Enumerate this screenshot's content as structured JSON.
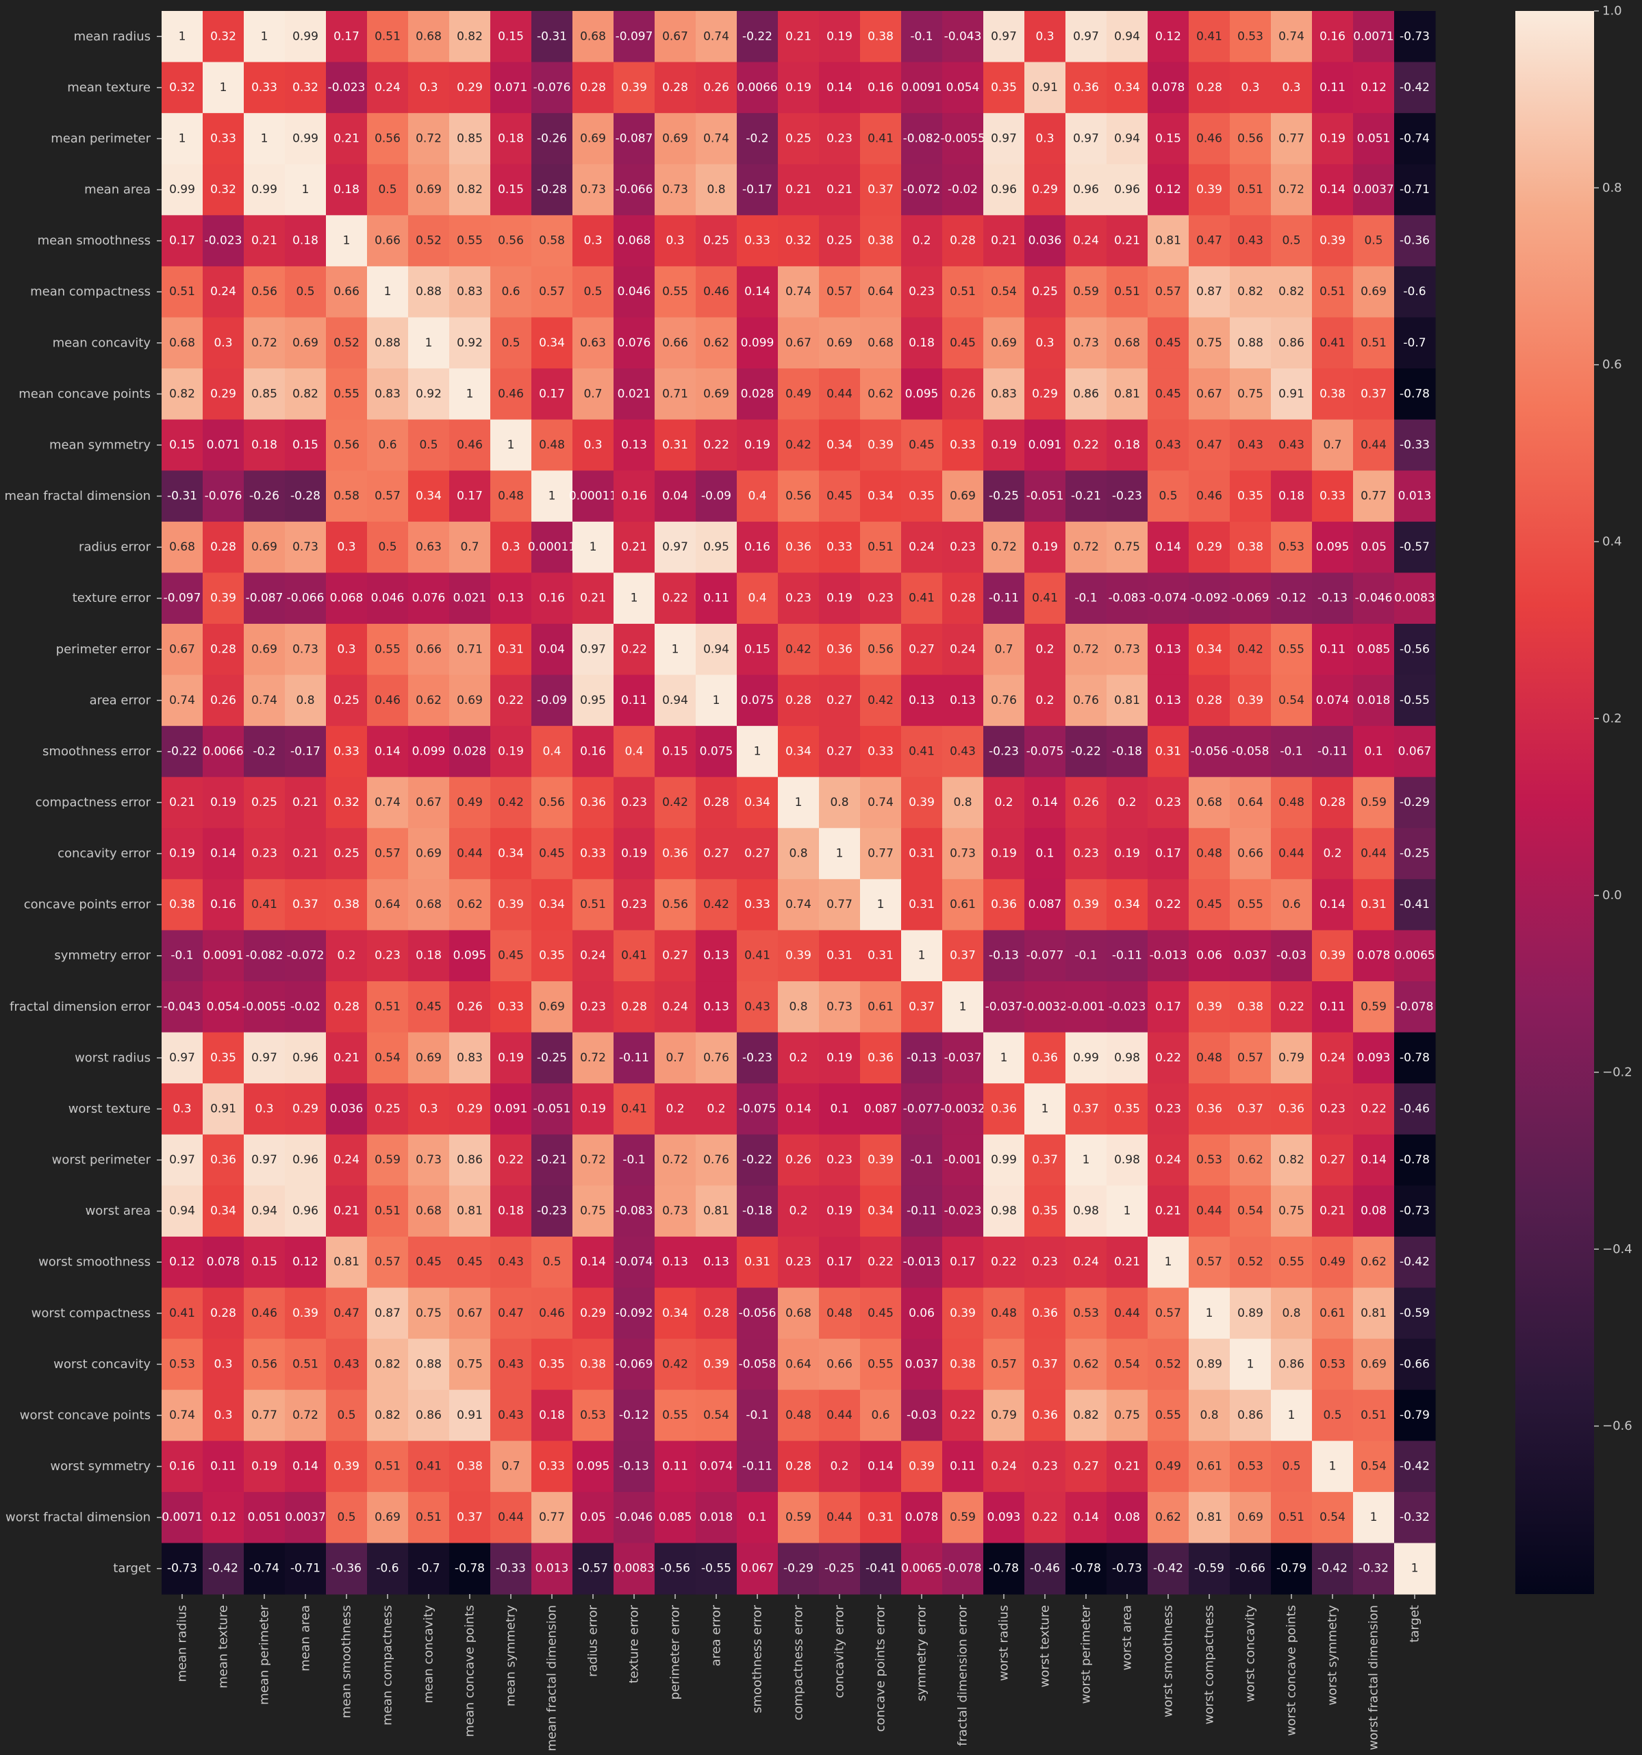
{
  "chart_data": {
    "type": "heatmap",
    "title": "",
    "xlabel": "",
    "ylabel": "",
    "vmin": -0.79,
    "vmax": 1.0,
    "colormap": "rocket",
    "colorbar_ticks": [
      "1.0",
      "0.8",
      "0.6",
      "0.4",
      "0.2",
      "0.0",
      "−0.2",
      "−0.4",
      "−0.6"
    ],
    "colorbar_tick_values": [
      1.0,
      0.8,
      0.6,
      0.4,
      0.2,
      0.0,
      -0.2,
      -0.4,
      -0.6
    ],
    "labels": [
      "mean radius",
      "mean texture",
      "mean perimeter",
      "mean area",
      "mean smoothness",
      "mean compactness",
      "mean concavity",
      "mean concave points",
      "mean symmetry",
      "mean fractal dimension",
      "radius error",
      "texture error",
      "perimeter error",
      "area error",
      "smoothness error",
      "compactness error",
      "concavity error",
      "concave points error",
      "symmetry error",
      "fractal dimension error",
      "worst radius",
      "worst texture",
      "worst perimeter",
      "worst area",
      "worst smoothness",
      "worst compactness",
      "worst concavity",
      "worst concave points",
      "worst symmetry",
      "worst fractal dimension",
      "target"
    ],
    "matrix": [
      [
        "1",
        "0.32",
        "1",
        "0.99",
        "0.17",
        "0.51",
        "0.68",
        "0.82",
        "0.15",
        "-0.31",
        "0.68",
        "-0.097",
        "0.67",
        "0.74",
        "-0.22",
        "0.21",
        "0.19",
        "0.38",
        "-0.1",
        "-0.043",
        "0.97",
        "0.3",
        "0.97",
        "0.94",
        "0.12",
        "0.41",
        "0.53",
        "0.74",
        "0.16",
        "0.0071",
        "-0.73"
      ],
      [
        "0.32",
        "1",
        "0.33",
        "0.32",
        "-0.023",
        "0.24",
        "0.3",
        "0.29",
        "0.071",
        "-0.076",
        "0.28",
        "0.39",
        "0.28",
        "0.26",
        "0.0066",
        "0.19",
        "0.14",
        "0.16",
        "0.0091",
        "0.054",
        "0.35",
        "0.91",
        "0.36",
        "0.34",
        "0.078",
        "0.28",
        "0.3",
        "0.3",
        "0.11",
        "0.12",
        "-0.42"
      ],
      [
        "1",
        "0.33",
        "1",
        "0.99",
        "0.21",
        "0.56",
        "0.72",
        "0.85",
        "0.18",
        "-0.26",
        "0.69",
        "-0.087",
        "0.69",
        "0.74",
        "-0.2",
        "0.25",
        "0.23",
        "0.41",
        "-0.082",
        "-0.0055",
        "0.97",
        "0.3",
        "0.97",
        "0.94",
        "0.15",
        "0.46",
        "0.56",
        "0.77",
        "0.19",
        "0.051",
        "-0.74"
      ],
      [
        "0.99",
        "0.32",
        "0.99",
        "1",
        "0.18",
        "0.5",
        "0.69",
        "0.82",
        "0.15",
        "-0.28",
        "0.73",
        "-0.066",
        "0.73",
        "0.8",
        "-0.17",
        "0.21",
        "0.21",
        "0.37",
        "-0.072",
        "-0.02",
        "0.96",
        "0.29",
        "0.96",
        "0.96",
        "0.12",
        "0.39",
        "0.51",
        "0.72",
        "0.14",
        "0.0037",
        "-0.71"
      ],
      [
        "0.17",
        "-0.023",
        "0.21",
        "0.18",
        "1",
        "0.66",
        "0.52",
        "0.55",
        "0.56",
        "0.58",
        "0.3",
        "0.068",
        "0.3",
        "0.25",
        "0.33",
        "0.32",
        "0.25",
        "0.38",
        "0.2",
        "0.28",
        "0.21",
        "0.036",
        "0.24",
        "0.21",
        "0.81",
        "0.47",
        "0.43",
        "0.5",
        "0.39",
        "0.5",
        "-0.36"
      ],
      [
        "0.51",
        "0.24",
        "0.56",
        "0.5",
        "0.66",
        "1",
        "0.88",
        "0.83",
        "0.6",
        "0.57",
        "0.5",
        "0.046",
        "0.55",
        "0.46",
        "0.14",
        "0.74",
        "0.57",
        "0.64",
        "0.23",
        "0.51",
        "0.54",
        "0.25",
        "0.59",
        "0.51",
        "0.57",
        "0.87",
        "0.82",
        "0.82",
        "0.51",
        "0.69",
        "-0.6"
      ],
      [
        "0.68",
        "0.3",
        "0.72",
        "0.69",
        "0.52",
        "0.88",
        "1",
        "0.92",
        "0.5",
        "0.34",
        "0.63",
        "0.076",
        "0.66",
        "0.62",
        "0.099",
        "0.67",
        "0.69",
        "0.68",
        "0.18",
        "0.45",
        "0.69",
        "0.3",
        "0.73",
        "0.68",
        "0.45",
        "0.75",
        "0.88",
        "0.86",
        "0.41",
        "0.51",
        "-0.7"
      ],
      [
        "0.82",
        "0.29",
        "0.85",
        "0.82",
        "0.55",
        "0.83",
        "0.92",
        "1",
        "0.46",
        "0.17",
        "0.7",
        "0.021",
        "0.71",
        "0.69",
        "0.028",
        "0.49",
        "0.44",
        "0.62",
        "0.095",
        "0.26",
        "0.83",
        "0.29",
        "0.86",
        "0.81",
        "0.45",
        "0.67",
        "0.75",
        "0.91",
        "0.38",
        "0.37",
        "-0.78"
      ],
      [
        "0.15",
        "0.071",
        "0.18",
        "0.15",
        "0.56",
        "0.6",
        "0.5",
        "0.46",
        "1",
        "0.48",
        "0.3",
        "0.13",
        "0.31",
        "0.22",
        "0.19",
        "0.42",
        "0.34",
        "0.39",
        "0.45",
        "0.33",
        "0.19",
        "0.091",
        "0.22",
        "0.18",
        "0.43",
        "0.47",
        "0.43",
        "0.43",
        "0.7",
        "0.44",
        "-0.33"
      ],
      [
        "-0.31",
        "-0.076",
        "-0.26",
        "-0.28",
        "0.58",
        "0.57",
        "0.34",
        "0.17",
        "0.48",
        "1",
        "0.00011",
        "0.16",
        "0.04",
        "-0.09",
        "0.4",
        "0.56",
        "0.45",
        "0.34",
        "0.35",
        "0.69",
        "-0.25",
        "-0.051",
        "-0.21",
        "-0.23",
        "0.5",
        "0.46",
        "0.35",
        "0.18",
        "0.33",
        "0.77",
        "0.013"
      ],
      [
        "0.68",
        "0.28",
        "0.69",
        "0.73",
        "0.3",
        "0.5",
        "0.63",
        "0.7",
        "0.3",
        "0.00011",
        "1",
        "0.21",
        "0.97",
        "0.95",
        "0.16",
        "0.36",
        "0.33",
        "0.51",
        "0.24",
        "0.23",
        "0.72",
        "0.19",
        "0.72",
        "0.75",
        "0.14",
        "0.29",
        "0.38",
        "0.53",
        "0.095",
        "0.05",
        "-0.57"
      ],
      [
        "-0.097",
        "0.39",
        "-0.087",
        "-0.066",
        "0.068",
        "0.046",
        "0.076",
        "0.021",
        "0.13",
        "0.16",
        "0.21",
        "1",
        "0.22",
        "0.11",
        "0.4",
        "0.23",
        "0.19",
        "0.23",
        "0.41",
        "0.28",
        "-0.11",
        "0.41",
        "-0.1",
        "-0.083",
        "-0.074",
        "-0.092",
        "-0.069",
        "-0.12",
        "-0.13",
        "-0.046",
        "0.0083"
      ],
      [
        "0.67",
        "0.28",
        "0.69",
        "0.73",
        "0.3",
        "0.55",
        "0.66",
        "0.71",
        "0.31",
        "0.04",
        "0.97",
        "0.22",
        "1",
        "0.94",
        "0.15",
        "0.42",
        "0.36",
        "0.56",
        "0.27",
        "0.24",
        "0.7",
        "0.2",
        "0.72",
        "0.73",
        "0.13",
        "0.34",
        "0.42",
        "0.55",
        "0.11",
        "0.085",
        "-0.56"
      ],
      [
        "0.74",
        "0.26",
        "0.74",
        "0.8",
        "0.25",
        "0.46",
        "0.62",
        "0.69",
        "0.22",
        "-0.09",
        "0.95",
        "0.11",
        "0.94",
        "1",
        "0.075",
        "0.28",
        "0.27",
        "0.42",
        "0.13",
        "0.13",
        "0.76",
        "0.2",
        "0.76",
        "0.81",
        "0.13",
        "0.28",
        "0.39",
        "0.54",
        "0.074",
        "0.018",
        "-0.55"
      ],
      [
        "-0.22",
        "0.0066",
        "-0.2",
        "-0.17",
        "0.33",
        "0.14",
        "0.099",
        "0.028",
        "0.19",
        "0.4",
        "0.16",
        "0.4",
        "0.15",
        "0.075",
        "1",
        "0.34",
        "0.27",
        "0.33",
        "0.41",
        "0.43",
        "-0.23",
        "-0.075",
        "-0.22",
        "-0.18",
        "0.31",
        "-0.056",
        "-0.058",
        "-0.1",
        "-0.11",
        "0.1",
        "0.067"
      ],
      [
        "0.21",
        "0.19",
        "0.25",
        "0.21",
        "0.32",
        "0.74",
        "0.67",
        "0.49",
        "0.42",
        "0.56",
        "0.36",
        "0.23",
        "0.42",
        "0.28",
        "0.34",
        "1",
        "0.8",
        "0.74",
        "0.39",
        "0.8",
        "0.2",
        "0.14",
        "0.26",
        "0.2",
        "0.23",
        "0.68",
        "0.64",
        "0.48",
        "0.28",
        "0.59",
        "-0.29"
      ],
      [
        "0.19",
        "0.14",
        "0.23",
        "0.21",
        "0.25",
        "0.57",
        "0.69",
        "0.44",
        "0.34",
        "0.45",
        "0.33",
        "0.19",
        "0.36",
        "0.27",
        "0.27",
        "0.8",
        "1",
        "0.77",
        "0.31",
        "0.73",
        "0.19",
        "0.1",
        "0.23",
        "0.19",
        "0.17",
        "0.48",
        "0.66",
        "0.44",
        "0.2",
        "0.44",
        "-0.25"
      ],
      [
        "0.38",
        "0.16",
        "0.41",
        "0.37",
        "0.38",
        "0.64",
        "0.68",
        "0.62",
        "0.39",
        "0.34",
        "0.51",
        "0.23",
        "0.56",
        "0.42",
        "0.33",
        "0.74",
        "0.77",
        "1",
        "0.31",
        "0.61",
        "0.36",
        "0.087",
        "0.39",
        "0.34",
        "0.22",
        "0.45",
        "0.55",
        "0.6",
        "0.14",
        "0.31",
        "-0.41"
      ],
      [
        "-0.1",
        "0.0091",
        "-0.082",
        "-0.072",
        "0.2",
        "0.23",
        "0.18",
        "0.095",
        "0.45",
        "0.35",
        "0.24",
        "0.41",
        "0.27",
        "0.13",
        "0.41",
        "0.39",
        "0.31",
        "0.31",
        "1",
        "0.37",
        "-0.13",
        "-0.077",
        "-0.1",
        "-0.11",
        "-0.013",
        "0.06",
        "0.037",
        "-0.03",
        "0.39",
        "0.078",
        "0.0065"
      ],
      [
        "-0.043",
        "0.054",
        "-0.0055",
        "-0.02",
        "0.28",
        "0.51",
        "0.45",
        "0.26",
        "0.33",
        "0.69",
        "0.23",
        "0.28",
        "0.24",
        "0.13",
        "0.43",
        "0.8",
        "0.73",
        "0.61",
        "0.37",
        "1",
        "-0.037",
        "-0.0032",
        "-0.001",
        "-0.023",
        "0.17",
        "0.39",
        "0.38",
        "0.22",
        "0.11",
        "0.59",
        "-0.078"
      ],
      [
        "0.97",
        "0.35",
        "0.97",
        "0.96",
        "0.21",
        "0.54",
        "0.69",
        "0.83",
        "0.19",
        "-0.25",
        "0.72",
        "-0.11",
        "0.7",
        "0.76",
        "-0.23",
        "0.2",
        "0.19",
        "0.36",
        "-0.13",
        "-0.037",
        "1",
        "0.36",
        "0.99",
        "0.98",
        "0.22",
        "0.48",
        "0.57",
        "0.79",
        "0.24",
        "0.093",
        "-0.78"
      ],
      [
        "0.3",
        "0.91",
        "0.3",
        "0.29",
        "0.036",
        "0.25",
        "0.3",
        "0.29",
        "0.091",
        "-0.051",
        "0.19",
        "0.41",
        "0.2",
        "0.2",
        "-0.075",
        "0.14",
        "0.1",
        "0.087",
        "-0.077",
        "-0.0032",
        "0.36",
        "1",
        "0.37",
        "0.35",
        "0.23",
        "0.36",
        "0.37",
        "0.36",
        "0.23",
        "0.22",
        "-0.46"
      ],
      [
        "0.97",
        "0.36",
        "0.97",
        "0.96",
        "0.24",
        "0.59",
        "0.73",
        "0.86",
        "0.22",
        "-0.21",
        "0.72",
        "-0.1",
        "0.72",
        "0.76",
        "-0.22",
        "0.26",
        "0.23",
        "0.39",
        "-0.1",
        "-0.001",
        "0.99",
        "0.37",
        "1",
        "0.98",
        "0.24",
        "0.53",
        "0.62",
        "0.82",
        "0.27",
        "0.14",
        "-0.78"
      ],
      [
        "0.94",
        "0.34",
        "0.94",
        "0.96",
        "0.21",
        "0.51",
        "0.68",
        "0.81",
        "0.18",
        "-0.23",
        "0.75",
        "-0.083",
        "0.73",
        "0.81",
        "-0.18",
        "0.2",
        "0.19",
        "0.34",
        "-0.11",
        "-0.023",
        "0.98",
        "0.35",
        "0.98",
        "1",
        "0.21",
        "0.44",
        "0.54",
        "0.75",
        "0.21",
        "0.08",
        "-0.73"
      ],
      [
        "0.12",
        "0.078",
        "0.15",
        "0.12",
        "0.81",
        "0.57",
        "0.45",
        "0.45",
        "0.43",
        "0.5",
        "0.14",
        "-0.074",
        "0.13",
        "0.13",
        "0.31",
        "0.23",
        "0.17",
        "0.22",
        "-0.013",
        "0.17",
        "0.22",
        "0.23",
        "0.24",
        "0.21",
        "1",
        "0.57",
        "0.52",
        "0.55",
        "0.49",
        "0.62",
        "-0.42"
      ],
      [
        "0.41",
        "0.28",
        "0.46",
        "0.39",
        "0.47",
        "0.87",
        "0.75",
        "0.67",
        "0.47",
        "0.46",
        "0.29",
        "-0.092",
        "0.34",
        "0.28",
        "-0.056",
        "0.68",
        "0.48",
        "0.45",
        "0.06",
        "0.39",
        "0.48",
        "0.36",
        "0.53",
        "0.44",
        "0.57",
        "1",
        "0.89",
        "0.8",
        "0.61",
        "0.81",
        "-0.59"
      ],
      [
        "0.53",
        "0.3",
        "0.56",
        "0.51",
        "0.43",
        "0.82",
        "0.88",
        "0.75",
        "0.43",
        "0.35",
        "0.38",
        "-0.069",
        "0.42",
        "0.39",
        "-0.058",
        "0.64",
        "0.66",
        "0.55",
        "0.037",
        "0.38",
        "0.57",
        "0.37",
        "0.62",
        "0.54",
        "0.52",
        "0.89",
        "1",
        "0.86",
        "0.53",
        "0.69",
        "-0.66"
      ],
      [
        "0.74",
        "0.3",
        "0.77",
        "0.72",
        "0.5",
        "0.82",
        "0.86",
        "0.91",
        "0.43",
        "0.18",
        "0.53",
        "-0.12",
        "0.55",
        "0.54",
        "-0.1",
        "0.48",
        "0.44",
        "0.6",
        "-0.03",
        "0.22",
        "0.79",
        "0.36",
        "0.82",
        "0.75",
        "0.55",
        "0.8",
        "0.86",
        "1",
        "0.5",
        "0.51",
        "-0.79"
      ],
      [
        "0.16",
        "0.11",
        "0.19",
        "0.14",
        "0.39",
        "0.51",
        "0.41",
        "0.38",
        "0.7",
        "0.33",
        "0.095",
        "-0.13",
        "0.11",
        "0.074",
        "-0.11",
        "0.28",
        "0.2",
        "0.14",
        "0.39",
        "0.11",
        "0.24",
        "0.23",
        "0.27",
        "0.21",
        "0.49",
        "0.61",
        "0.53",
        "0.5",
        "1",
        "0.54",
        "-0.42"
      ],
      [
        "0.0071",
        "0.12",
        "0.051",
        "0.0037",
        "0.5",
        "0.69",
        "0.51",
        "0.37",
        "0.44",
        "0.77",
        "0.05",
        "-0.046",
        "0.085",
        "0.018",
        "0.1",
        "0.59",
        "0.44",
        "0.31",
        "0.078",
        "0.59",
        "0.093",
        "0.22",
        "0.14",
        "0.08",
        "0.62",
        "0.81",
        "0.69",
        "0.51",
        "0.54",
        "1",
        "-0.32"
      ],
      [
        "-0.73",
        "-0.42",
        "-0.74",
        "-0.71",
        "-0.36",
        "-0.6",
        "-0.7",
        "-0.78",
        "-0.33",
        "0.013",
        "-0.57",
        "0.0083",
        "-0.56",
        "-0.55",
        "0.067",
        "-0.29",
        "-0.25",
        "-0.41",
        "0.0065",
        "-0.078",
        "-0.78",
        "-0.46",
        "-0.78",
        "-0.73",
        "-0.42",
        "-0.59",
        "-0.66",
        "-0.79",
        "-0.42",
        "-0.32",
        "1"
      ]
    ]
  }
}
